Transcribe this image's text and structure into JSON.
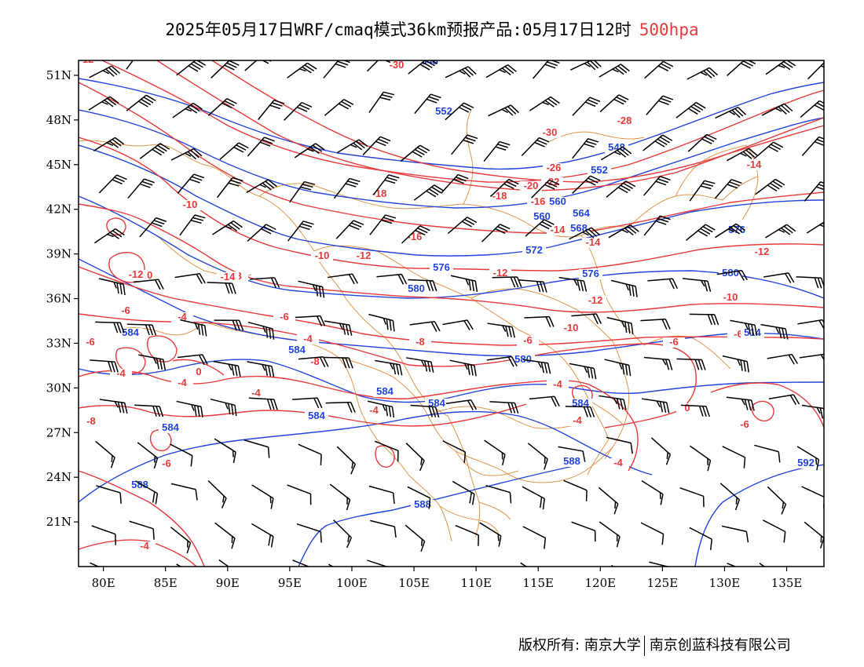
{
  "header": {
    "title": "2025年05月17日WRF/cmaq模式36km预报产品:05月17日12时",
    "level": "500hpa"
  },
  "axes": {
    "lat_labels": [
      "51N",
      "48N",
      "45N",
      "42N",
      "39N",
      "36N",
      "33N",
      "30N",
      "27N",
      "24N",
      "21N"
    ],
    "lon_labels": [
      "80E",
      "85E",
      "90E",
      "95E",
      "100E",
      "105E",
      "110E",
      "115E",
      "120E",
      "125E",
      "130E",
      "135E"
    ],
    "lat_values": [
      51,
      48,
      45,
      42,
      39,
      36,
      33,
      30,
      27,
      24,
      21
    ],
    "lon_values": [
      80,
      85,
      90,
      95,
      100,
      105,
      110,
      115,
      120,
      125,
      130,
      135
    ],
    "lon_range": [
      78,
      138
    ],
    "lat_range": [
      18,
      52
    ]
  },
  "colors": {
    "temperature": "#e8393b",
    "height": "#2244dd",
    "borders": "#e0964a",
    "barb": "#000000"
  },
  "contour_labels": {
    "temperature": [
      "-30",
      "-28",
      "-30",
      "-26",
      "-20",
      "-22",
      "-18",
      "-16",
      "-14",
      "-16",
      "-18",
      "-14",
      "-14",
      "-12",
      "-10",
      "-12",
      "-12",
      "-10",
      "-10",
      "-8",
      "-12",
      "-10",
      "-8",
      "-6",
      "-8",
      "-6",
      "-4",
      "-6",
      "-6",
      "-4",
      "-4",
      "0",
      "-4",
      "-4",
      "-4",
      "-4",
      "-6",
      "-6",
      "-4",
      "-4",
      "-6",
      "-8",
      "0",
      "-4",
      "-10",
      "-12",
      "-14",
      "-6",
      "-12"
    ],
    "height": [
      "548",
      "552",
      "548",
      "552",
      "560",
      "564",
      "568",
      "572",
      "576",
      "580",
      "584",
      "584",
      "584",
      "584",
      "584",
      "584",
      "588",
      "588",
      "588",
      "580",
      "576",
      "576",
      "580",
      "584",
      "592",
      "560",
      "514"
    ]
  },
  "footer": {
    "copyright": "版权所有: 南京大学",
    "company": "南京创蓝科技有限公司"
  }
}
